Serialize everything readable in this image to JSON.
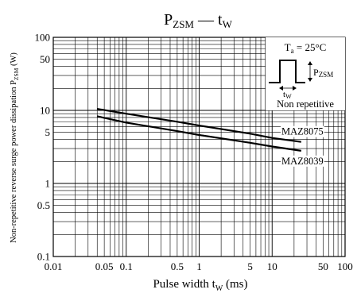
{
  "chart_data": {
    "type": "line",
    "title_main": "P",
    "title_sub": "ZSM",
    "title_sep": " — ",
    "title_main2": "t",
    "title_sub2": "W",
    "xlabel_main": "Pulse width  t",
    "xlabel_sub": "W",
    "xlabel_unit": "  (ms)",
    "ylabel_main": "Non-repetitive reverse surge power dissipation  P",
    "ylabel_sub": "ZSM",
    "ylabel_unit": "  (W)",
    "x_scale": "log",
    "y_scale": "log",
    "xlim": [
      0.01,
      100
    ],
    "ylim": [
      0.1,
      100
    ],
    "grid": true,
    "x_ticks": [
      {
        "value": 0.01,
        "label": "0.01"
      },
      {
        "value": 0.05,
        "label": "0.05"
      },
      {
        "value": 0.1,
        "label": "0.1"
      },
      {
        "value": 0.5,
        "label": "0.5"
      },
      {
        "value": 1,
        "label": "1"
      },
      {
        "value": 5,
        "label": "5"
      },
      {
        "value": 10,
        "label": "10"
      },
      {
        "value": 50,
        "label": "50"
      },
      {
        "value": 100,
        "label": "100"
      }
    ],
    "y_ticks": [
      {
        "value": 0.1,
        "label": "0.1"
      },
      {
        "value": 0.5,
        "label": "0.5"
      },
      {
        "value": 1,
        "label": "1"
      },
      {
        "value": 5,
        "label": "5"
      },
      {
        "value": 10,
        "label": "10"
      },
      {
        "value": 50,
        "label": "50"
      },
      {
        "value": 100,
        "label": "100"
      }
    ],
    "series": [
      {
        "name": "MAZ8075",
        "x": [
          0.04,
          0.1,
          0.5,
          1,
          5,
          10,
          25
        ],
        "y": [
          10.5,
          9.0,
          7.0,
          6.2,
          4.8,
          4.2,
          3.7
        ]
      },
      {
        "name": "MAZ8039",
        "x": [
          0.04,
          0.1,
          0.5,
          1,
          5,
          10,
          25
        ],
        "y": [
          8.3,
          6.8,
          5.2,
          4.6,
          3.6,
          3.2,
          2.8
        ]
      }
    ],
    "inset": {
      "condition_main": "T",
      "condition_sub": "a",
      "condition_value": " = 25°C",
      "pulse_label_main": "P",
      "pulse_label_sub": "ZSM",
      "width_label_main": "t",
      "width_label_sub": "W",
      "note": "Non repetitive"
    }
  }
}
